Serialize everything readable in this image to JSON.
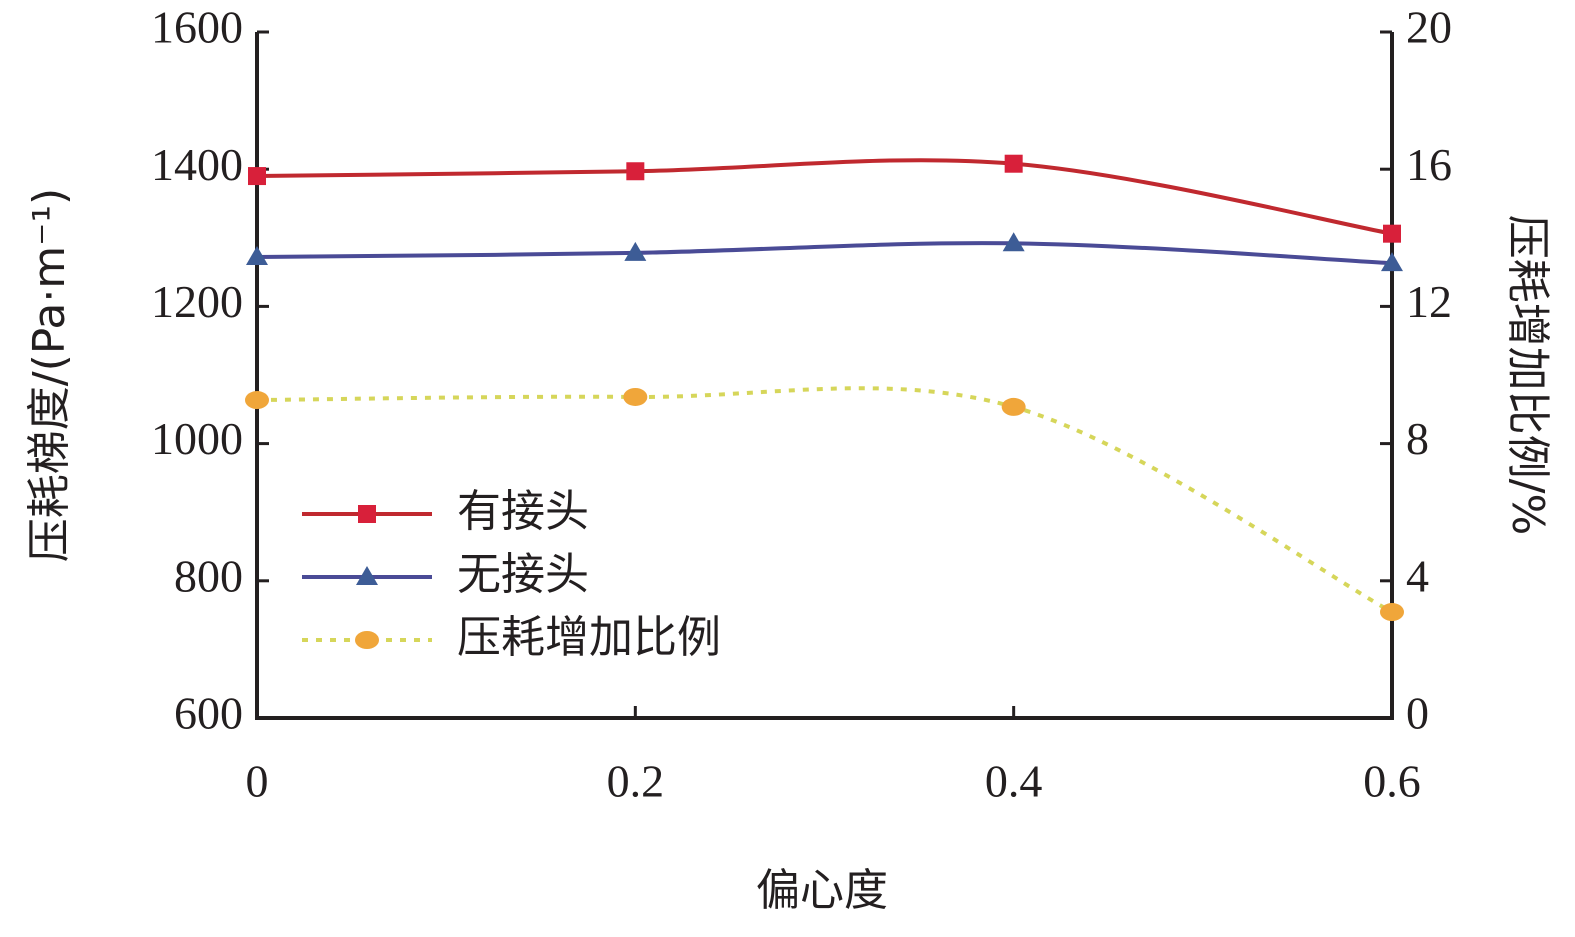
{
  "chart_data": {
    "type": "line",
    "x_label": "偏心度",
    "y_label": "压耗梯度/(Pa·m⁻¹)",
    "y2_label": "压耗增加比例/%",
    "x": [
      0,
      0.2,
      0.4,
      0.6
    ],
    "xlim": [
      0,
      0.6
    ],
    "xticks": [
      0,
      0.2,
      0.4,
      0.6
    ],
    "ylim": [
      600,
      1600
    ],
    "yticks": [
      600,
      800,
      1000,
      1200,
      1400,
      1600
    ],
    "y2lim": [
      0,
      20
    ],
    "y2ticks": [
      0,
      4,
      8,
      12,
      16,
      20
    ],
    "legend": "left",
    "series": [
      {
        "name": "有接头",
        "color": "#c0292f",
        "marker": "square",
        "line": "solid",
        "values": [
          1390,
          1397,
          1408,
          1306
        ]
      },
      {
        "name": "无接头",
        "color": "#4a4b96",
        "marker": "triangle",
        "line": "solid",
        "values": [
          1272,
          1278,
          1292,
          1263
        ]
      },
      {
        "name": "压耗增加比例",
        "color": "#d6d65a",
        "marker": "circle",
        "line": "dotted",
        "axis": "y2",
        "values": [
          9.27,
          9.36,
          9.07,
          3.09
        ]
      }
    ]
  }
}
